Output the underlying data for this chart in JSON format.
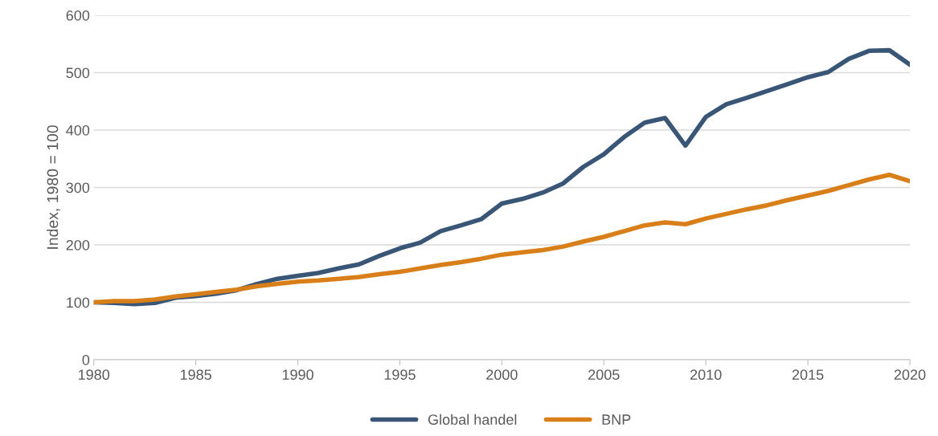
{
  "chart_data": {
    "type": "line",
    "ylabel": "Index, 1980 = 100",
    "x": [
      1980,
      1981,
      1982,
      1983,
      1984,
      1985,
      1986,
      1987,
      1988,
      1989,
      1990,
      1991,
      1992,
      1993,
      1994,
      1995,
      1996,
      1997,
      1998,
      1999,
      2000,
      2001,
      2002,
      2003,
      2004,
      2005,
      2006,
      2007,
      2008,
      2009,
      2010,
      2011,
      2012,
      2013,
      2014,
      2015,
      2016,
      2017,
      2018,
      2019,
      2020
    ],
    "series": [
      {
        "name": "Global handel",
        "color": "#3a5676",
        "values": [
          100,
          99,
          97,
          99,
          108,
          111,
          115,
          121,
          132,
          141,
          146,
          151,
          159,
          166,
          181,
          194,
          204,
          224,
          234,
          245,
          272,
          280,
          291,
          307,
          336,
          358,
          388,
          413,
          421,
          373,
          423,
          445,
          456,
          468,
          480,
          492,
          501,
          524,
          538,
          539,
          514
        ]
      },
      {
        "name": "BNP",
        "color": "#d97f1a",
        "values": [
          100,
          102,
          102,
          105,
          110,
          114,
          118,
          122,
          128,
          132,
          136,
          138,
          141,
          144,
          149,
          153,
          159,
          165,
          170,
          176,
          183,
          187,
          191,
          197,
          206,
          214,
          224,
          234,
          239,
          236,
          246,
          254,
          262,
          269,
          278,
          286,
          294,
          304,
          314,
          322,
          311
        ]
      }
    ],
    "xlim": [
      1980,
      2020
    ],
    "xticks": [
      1980,
      1985,
      1990,
      1995,
      2000,
      2005,
      2010,
      2015,
      2020
    ],
    "ylim": [
      0,
      600
    ],
    "yticks": [
      0,
      100,
      200,
      300,
      400,
      500,
      600
    ],
    "grid": "y",
    "legend": "bottom",
    "marker": "none",
    "line_style": "solid"
  }
}
